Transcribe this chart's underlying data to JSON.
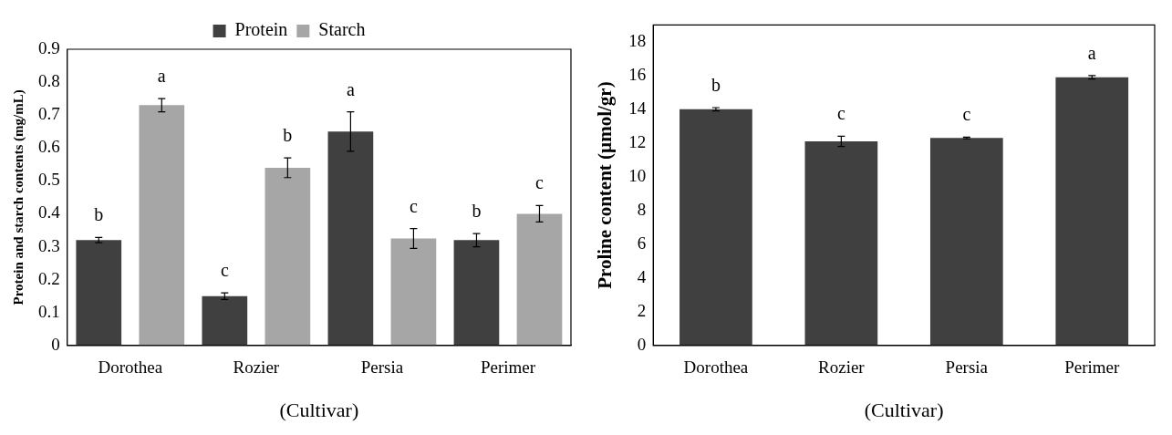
{
  "chart_data": [
    {
      "type": "bar",
      "categories": [
        "Dorothea",
        "Rozier",
        "Persia",
        "Perimer"
      ],
      "xlabel": "(Cultivar)",
      "ylabel": "Protein and starch contents (mg/mL)",
      "ylim": [
        0,
        0.9
      ],
      "yticks": [
        0,
        0.1,
        0.2,
        0.3,
        0.4,
        0.5,
        0.6,
        0.7,
        0.8,
        0.9
      ],
      "grid": false,
      "legend": "top",
      "series": [
        {
          "name": "Protein",
          "color": "#404040",
          "values": [
            0.32,
            0.15,
            0.65,
            0.32
          ],
          "errors": [
            0.008,
            0.01,
            0.06,
            0.02
          ]
        },
        {
          "name": "Starch",
          "color": "#a6a6a6",
          "values": [
            0.73,
            0.54,
            0.325,
            0.4
          ],
          "errors": [
            0.02,
            0.03,
            0.03,
            0.025
          ]
        }
      ],
      "annotations": [
        "b",
        "a",
        "c",
        "b",
        "a",
        "c",
        "b",
        "c"
      ]
    },
    {
      "type": "bar",
      "categories": [
        "Dorothea",
        "Rozier",
        "Persia",
        "Perimer"
      ],
      "xlabel": "(Cultivar)",
      "ylabel": "Proline content (µmol/gr)",
      "ylim": [
        0,
        19
      ],
      "yticks": [
        0,
        2,
        4,
        6,
        8,
        10,
        12,
        14,
        16,
        18
      ],
      "grid": false,
      "legend": false,
      "series": [
        {
          "color": "#404040",
          "values": [
            14.0,
            12.1,
            12.3,
            15.9
          ],
          "errors": [
            0.1,
            0.3,
            0.05,
            0.1
          ]
        }
      ],
      "annotations": [
        "b",
        "c",
        "c",
        "a"
      ]
    }
  ]
}
